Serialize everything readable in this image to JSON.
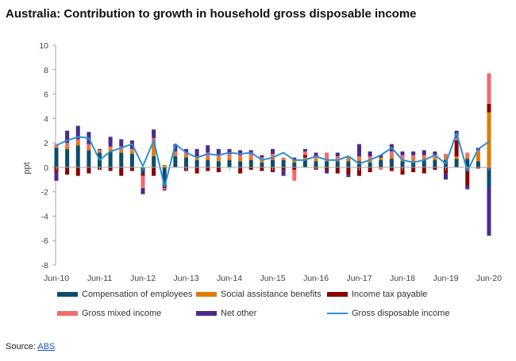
{
  "title": "Australia: Contribution to growth in household gross disposable income",
  "source": {
    "label": "Source:",
    "link_text": "ABS"
  },
  "chart_data": {
    "type": "bar",
    "stacked": true,
    "title": "Australia: Contribution to growth in household gross disposable income",
    "xlabel": "",
    "ylabel": "ppt",
    "ylim": [
      -8,
      10
    ],
    "yticks": [
      -8,
      -6,
      -4,
      -2,
      0,
      2,
      4,
      6,
      8,
      10
    ],
    "xtick_labels": [
      "Jun-10",
      "Jun-11",
      "Jun-12",
      "Jun-13",
      "Jun-14",
      "Jun-15",
      "Jun-16",
      "Jun-17",
      "Jun-18",
      "Jun-19",
      "Jun-20"
    ],
    "categories": [
      "Jun-10",
      "Sep-10",
      "Dec-10",
      "Mar-11",
      "Jun-11",
      "Sep-11",
      "Dec-11",
      "Mar-12",
      "Jun-12",
      "Sep-12",
      "Dec-12",
      "Mar-13",
      "Jun-13",
      "Sep-13",
      "Dec-13",
      "Mar-14",
      "Jun-14",
      "Sep-14",
      "Dec-14",
      "Mar-15",
      "Jun-15",
      "Sep-15",
      "Dec-15",
      "Mar-16",
      "Jun-16",
      "Sep-16",
      "Dec-16",
      "Mar-17",
      "Jun-17",
      "Sep-17",
      "Dec-17",
      "Mar-18",
      "Jun-18",
      "Sep-18",
      "Dec-18",
      "Mar-19",
      "Jun-19",
      "Sep-19",
      "Dec-19",
      "Mar-20",
      "Jun-20"
    ],
    "legend_position": "bottom",
    "grid": false,
    "series": [
      {
        "name": "Compensation of employees",
        "color": "#0d4d6b",
        "type": "bar",
        "values": [
          1.6,
          1.5,
          1.8,
          1.4,
          1.2,
          1.3,
          1.2,
          1.1,
          -0.5,
          0.9,
          -1.5,
          0.9,
          0.8,
          0.6,
          0.6,
          0.5,
          0.6,
          0.5,
          0.6,
          0.4,
          0.6,
          0.6,
          0.4,
          0.6,
          0.5,
          0.5,
          0.5,
          0.5,
          0.5,
          0.4,
          0.6,
          0.7,
          0.5,
          0.5,
          0.6,
          0.6,
          0.6,
          0.7,
          0.7,
          0.5,
          -1.7
        ]
      },
      {
        "name": "Social assistance benefits",
        "color": "#e07b00",
        "type": "bar",
        "values": [
          0.1,
          0.2,
          0.3,
          0.2,
          0.1,
          0.2,
          0.2,
          0.2,
          0.0,
          1.2,
          0.2,
          0.2,
          0.2,
          0.2,
          0.2,
          0.3,
          0.2,
          0.3,
          0.2,
          0.2,
          0.2,
          0.1,
          0.2,
          0.2,
          0.2,
          0.2,
          0.2,
          0.2,
          0.2,
          0.2,
          0.2,
          0.2,
          0.2,
          0.2,
          0.2,
          0.2,
          0.2,
          0.2,
          0.2,
          0.8,
          4.5
        ]
      },
      {
        "name": "Income tax payable",
        "color": "#8b0000",
        "type": "bar",
        "values": [
          -0.4,
          -0.6,
          -0.7,
          -0.5,
          -0.2,
          -0.3,
          -0.7,
          -0.3,
          -0.2,
          -0.7,
          -0.2,
          0.0,
          -0.3,
          -0.5,
          -0.3,
          -0.4,
          0.0,
          -0.5,
          -0.2,
          -0.3,
          -0.4,
          -0.2,
          -0.2,
          0.2,
          -0.2,
          -0.2,
          -0.5,
          -0.6,
          -0.7,
          -0.4,
          0.0,
          -0.3,
          -0.6,
          -0.4,
          -0.5,
          -0.2,
          -0.5,
          1.3,
          -1.5,
          -0.1,
          0.7
        ]
      },
      {
        "name": "Gross mixed income",
        "color": "#f26b6b",
        "type": "bar",
        "values": [
          0.2,
          0.3,
          0.2,
          0.3,
          0.1,
          0.2,
          0.3,
          0.2,
          -1.0,
          0.3,
          -0.1,
          0.2,
          0.2,
          0.1,
          0.4,
          0.2,
          0.3,
          0.2,
          0.3,
          0.2,
          0.3,
          0.1,
          -0.9,
          0.3,
          0.2,
          0.5,
          0.2,
          0.2,
          0.2,
          0.3,
          -0.2,
          0.4,
          0.3,
          0.3,
          0.2,
          0.2,
          0.3,
          0.2,
          0.3,
          0.1,
          2.5
        ]
      },
      {
        "name": "Net other",
        "color": "#4b2a8c",
        "type": "bar",
        "values": [
          -0.7,
          1.0,
          1.1,
          1.0,
          0.1,
          0.8,
          0.6,
          0.7,
          -0.5,
          0.7,
          -0.1,
          0.6,
          0.3,
          0.6,
          0.6,
          0.5,
          0.4,
          0.4,
          0.3,
          0.2,
          0.4,
          -0.5,
          0.2,
          0.2,
          0.3,
          -0.3,
          0.3,
          -0.2,
          1.0,
          0.4,
          0.2,
          0.6,
          0.3,
          0.3,
          0.4,
          0.3,
          -0.5,
          0.6,
          -0.3,
          0.2,
          -3.9
        ]
      },
      {
        "name": "Gross disposable income",
        "color": "#2b8fd6",
        "type": "line",
        "values": [
          1.8,
          2.2,
          2.5,
          2.4,
          0.6,
          1.3,
          1.6,
          1.9,
          0.1,
          2.2,
          -1.6,
          1.9,
          1.2,
          0.8,
          1.1,
          1.0,
          1.2,
          1.1,
          1.2,
          0.6,
          0.8,
          1.2,
          0.6,
          0.6,
          0.9,
          0.6,
          0.6,
          0.9,
          0.3,
          0.6,
          1.0,
          1.6,
          0.6,
          0.4,
          0.6,
          1.0,
          0.3,
          2.8,
          -0.3,
          1.5,
          2.1
        ]
      }
    ]
  },
  "colors": {
    "axis": "#a6a6a6",
    "text": "#444444",
    "link": "#1a55c8"
  }
}
